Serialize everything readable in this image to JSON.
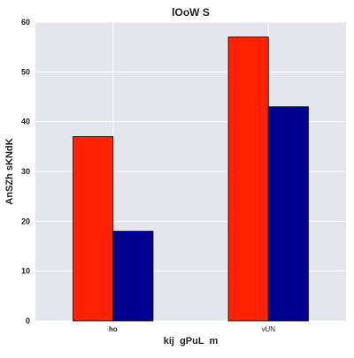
{
  "chart_data": {
    "type": "bar",
    "title": "lOoW S",
    "xlabel": "kij  gPuL  m",
    "ylabel": "AnSZh sKNdK",
    "categories": [
      "ho",
      "vUN"
    ],
    "series": [
      {
        "values": [
          37,
          57
        ],
        "color": "#ff2200"
      },
      {
        "values": [
          18,
          43
        ],
        "color": "#000090"
      }
    ],
    "ylim": [
      0,
      60
    ],
    "yticks": [
      0,
      10,
      20,
      30,
      40,
      50,
      60
    ],
    "grid": true,
    "legend": "none",
    "background_color": "#e5e5ee",
    "gridline_color": "#ffffff"
  }
}
